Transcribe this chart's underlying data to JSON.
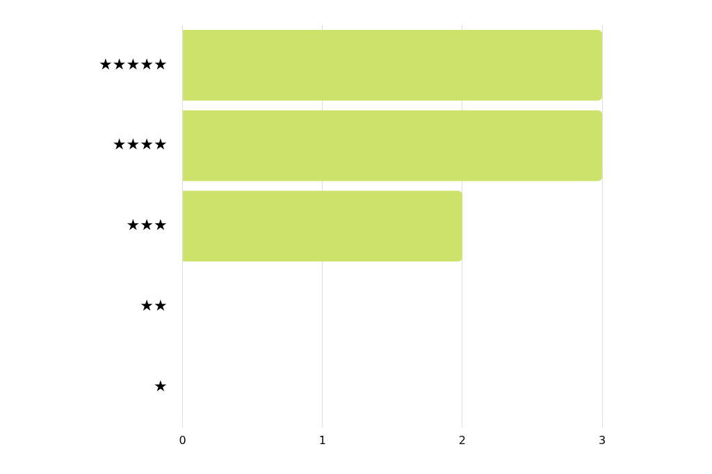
{
  "chart_data": {
    "type": "bar",
    "orientation": "horizontal",
    "categories": [
      "★★★★★",
      "★★★★",
      "★★★",
      "★★",
      "★"
    ],
    "values": [
      3,
      3,
      2,
      0,
      0
    ],
    "color": "#cce26a",
    "xlim": [
      0,
      3
    ],
    "xticks": [
      0,
      1,
      2,
      3
    ],
    "grid": "x",
    "legend": false
  }
}
